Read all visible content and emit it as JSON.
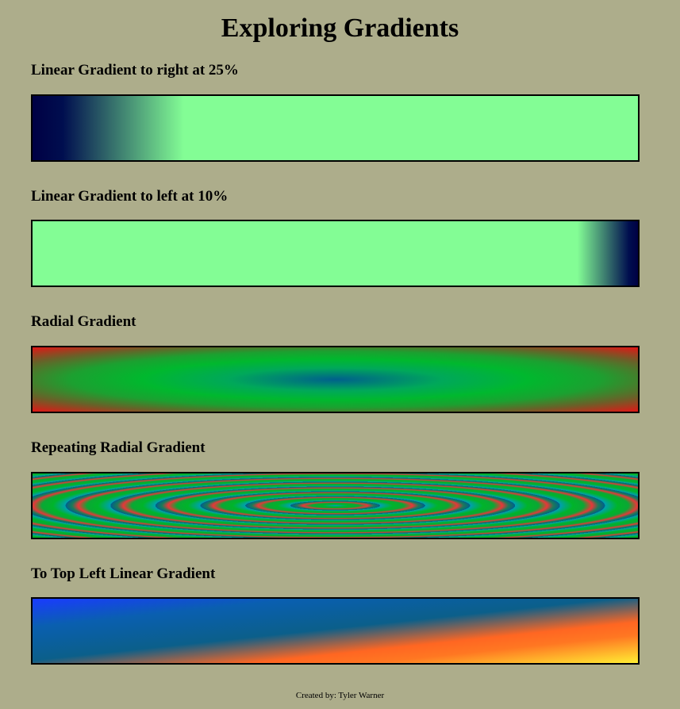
{
  "page": {
    "title": "Exploring Gradients",
    "footer": "Created by: Tyler Warner"
  },
  "sections": [
    {
      "title": "Linear Gradient to right at 25%"
    },
    {
      "title": "Linear Gradient to left at 10%"
    },
    {
      "title": "Radial Gradient"
    },
    {
      "title": "Repeating Radial Gradient"
    },
    {
      "title": "To Top Left Linear Gradient"
    }
  ],
  "colors": {
    "background": "#adad8b",
    "navy": "#000044",
    "mint": "#83fd95",
    "green": "#00b82e",
    "teal": "#00608c",
    "red": "#e21616",
    "blue": "#1a3bff",
    "orange": "#ff7722",
    "yellow": "#ffee33"
  }
}
